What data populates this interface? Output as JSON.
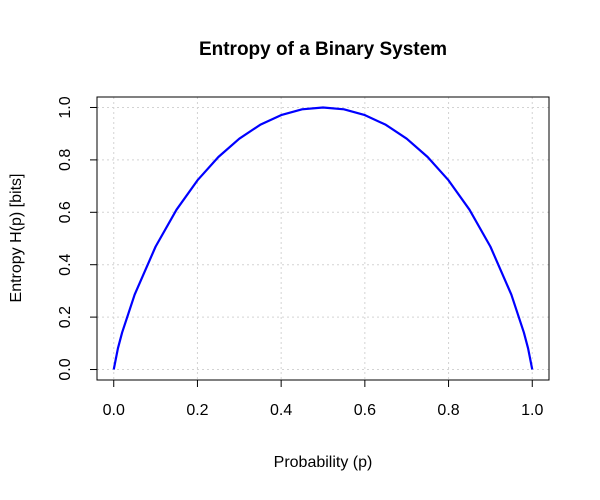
{
  "chart_data": {
    "type": "line",
    "title": "Entropy of a Binary System",
    "x_label": "Probability (p)",
    "y_label": "Entropy H(p) [bits]",
    "x": [
      0,
      0.01,
      0.02,
      0.05,
      0.1,
      0.15,
      0.2,
      0.25,
      0.3,
      0.35,
      0.4,
      0.45,
      0.5,
      0.55,
      0.6,
      0.65,
      0.7,
      0.75,
      0.8,
      0.85,
      0.9,
      0.95,
      0.98,
      0.99,
      1
    ],
    "series": [
      {
        "color": "#0000ff",
        "values": [
          0,
          0.081,
          0.141,
          0.286,
          0.469,
          0.61,
          0.722,
          0.811,
          0.881,
          0.934,
          0.971,
          0.993,
          1,
          0.993,
          0.971,
          0.934,
          0.881,
          0.811,
          0.722,
          0.61,
          0.469,
          0.286,
          0.141,
          0.081,
          0
        ]
      }
    ],
    "xlim": [
      -0.04,
      1.04
    ],
    "ylim": [
      -0.04,
      1.04
    ],
    "xticks": [
      {
        "value": 0,
        "label": "0.0"
      },
      0.2,
      0.4,
      0.6,
      0.8,
      {
        "value": 1,
        "label": "1.0"
      }
    ],
    "yticks": [
      {
        "value": 0,
        "label": "0.0"
      },
      0.2,
      0.4,
      0.6,
      0.8,
      {
        "value": 1,
        "label": "1.0"
      }
    ],
    "grid": true
  }
}
